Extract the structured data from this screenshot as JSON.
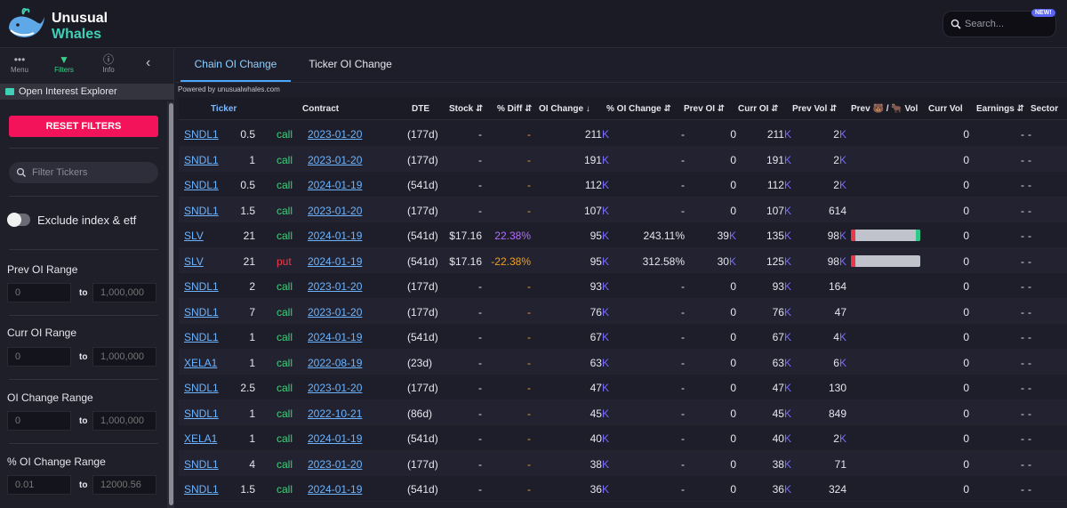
{
  "brand": {
    "line1": "Unusual",
    "line2": "Whales"
  },
  "search": {
    "placeholder": "Search...",
    "badge": "NEW!"
  },
  "sidebar": {
    "tabs": [
      {
        "label": "Menu",
        "icon": "dots-icon"
      },
      {
        "label": "Filters",
        "icon": "filter-icon"
      },
      {
        "label": "Info",
        "icon": "info-icon"
      }
    ],
    "section_title": "Open Interest Explorer",
    "reset_label": "RESET FILTERS",
    "filter_placeholder": "Filter Tickers",
    "exclude_label": "Exclude index & etf",
    "to_label": "to",
    "ranges": [
      {
        "label": "Prev OI Range",
        "min": "0",
        "max": "1,000,000"
      },
      {
        "label": "Curr OI Range",
        "min": "0",
        "max": "1,000,000"
      },
      {
        "label": "OI Change Range",
        "min": "0",
        "max": "1,000,000"
      },
      {
        "label": "% OI Change Range",
        "min": "0.01",
        "max": "12000.56"
      }
    ]
  },
  "main": {
    "tabs": [
      "Chain OI Change",
      "Ticker OI Change"
    ],
    "powered_by": "Powered by unusualwhales.com",
    "columns": {
      "ticker": "Ticker",
      "contract": "Contract",
      "dte": "DTE",
      "stock": "Stock ⇵",
      "pdiff": "% Diff ⇵",
      "oichange": "OI Change ↓",
      "poichange": "% OI Change ⇵",
      "prevoi": "Prev OI ⇵",
      "curroi": "Curr OI ⇵",
      "prevvol": "Prev Vol ⇵",
      "prevbearbull": "Prev 🐻 / 🐂 Vol",
      "currvol": "Curr Vol",
      "earnings": "Earnings ⇵",
      "sector": "Sector"
    },
    "rows": [
      {
        "ticker": "SNDL1",
        "strike": "0.5",
        "type": "call",
        "exp": "2023-01-20",
        "dte": "(177d)",
        "stock": "-",
        "pdiff": "-",
        "pdiff_sign": "dash",
        "oi_change": "211",
        "oi_change_k": "K",
        "poi_change": "-",
        "prev_oi": "0",
        "prev_oi_k": "",
        "curr_oi": "211",
        "curr_oi_k": "K",
        "prev_vol": "2",
        "prev_vol_k": "K",
        "bar": false,
        "curr_vol": "0",
        "earnings": "-",
        "sector": "-"
      },
      {
        "ticker": "SNDL1",
        "strike": "1",
        "type": "call",
        "exp": "2023-01-20",
        "dte": "(177d)",
        "stock": "-",
        "pdiff": "-",
        "pdiff_sign": "dash",
        "oi_change": "191",
        "oi_change_k": "K",
        "poi_change": "-",
        "prev_oi": "0",
        "prev_oi_k": "",
        "curr_oi": "191",
        "curr_oi_k": "K",
        "prev_vol": "2",
        "prev_vol_k": "K",
        "bar": false,
        "curr_vol": "0",
        "earnings": "-",
        "sector": "-"
      },
      {
        "ticker": "SNDL1",
        "strike": "0.5",
        "type": "call",
        "exp": "2024-01-19",
        "dte": "(541d)",
        "stock": "-",
        "pdiff": "-",
        "pdiff_sign": "dash",
        "oi_change": "112",
        "oi_change_k": "K",
        "poi_change": "-",
        "prev_oi": "0",
        "prev_oi_k": "",
        "curr_oi": "112",
        "curr_oi_k": "K",
        "prev_vol": "2",
        "prev_vol_k": "K",
        "bar": false,
        "curr_vol": "0",
        "earnings": "-",
        "sector": "-"
      },
      {
        "ticker": "SNDL1",
        "strike": "1.5",
        "type": "call",
        "exp": "2023-01-20",
        "dte": "(177d)",
        "stock": "-",
        "pdiff": "-",
        "pdiff_sign": "dash",
        "oi_change": "107",
        "oi_change_k": "K",
        "poi_change": "-",
        "prev_oi": "0",
        "prev_oi_k": "",
        "curr_oi": "107",
        "curr_oi_k": "K",
        "prev_vol": "614",
        "prev_vol_k": "",
        "bar": false,
        "curr_vol": "0",
        "earnings": "-",
        "sector": "-"
      },
      {
        "ticker": "SLV",
        "strike": "21",
        "type": "call",
        "exp": "2024-01-19",
        "dte": "(541d)",
        "stock": "$17.16",
        "pdiff": "22.38%",
        "pdiff_sign": "pos",
        "oi_change": "95",
        "oi_change_k": "K",
        "poi_change": "243.11%",
        "prev_oi": "39",
        "prev_oi_k": "K",
        "curr_oi": "135",
        "curr_oi_k": "K",
        "prev_vol": "98",
        "prev_vol_k": "K",
        "bar": true,
        "bar_green": true,
        "curr_vol": "0",
        "earnings": "-",
        "sector": "-"
      },
      {
        "ticker": "SLV",
        "strike": "21",
        "type": "put",
        "exp": "2024-01-19",
        "dte": "(541d)",
        "stock": "$17.16",
        "pdiff": "-22.38%",
        "pdiff_sign": "neg",
        "oi_change": "95",
        "oi_change_k": "K",
        "poi_change": "312.58%",
        "prev_oi": "30",
        "prev_oi_k": "K",
        "curr_oi": "125",
        "curr_oi_k": "K",
        "prev_vol": "98",
        "prev_vol_k": "K",
        "bar": true,
        "bar_green": false,
        "curr_vol": "0",
        "earnings": "-",
        "sector": "-"
      },
      {
        "ticker": "SNDL1",
        "strike": "2",
        "type": "call",
        "exp": "2023-01-20",
        "dte": "(177d)",
        "stock": "-",
        "pdiff": "-",
        "pdiff_sign": "dash",
        "oi_change": "93",
        "oi_change_k": "K",
        "poi_change": "-",
        "prev_oi": "0",
        "prev_oi_k": "",
        "curr_oi": "93",
        "curr_oi_k": "K",
        "prev_vol": "164",
        "prev_vol_k": "",
        "bar": false,
        "curr_vol": "0",
        "earnings": "-",
        "sector": "-"
      },
      {
        "ticker": "SNDL1",
        "strike": "7",
        "type": "call",
        "exp": "2023-01-20",
        "dte": "(177d)",
        "stock": "-",
        "pdiff": "-",
        "pdiff_sign": "dash",
        "oi_change": "76",
        "oi_change_k": "K",
        "poi_change": "-",
        "prev_oi": "0",
        "prev_oi_k": "",
        "curr_oi": "76",
        "curr_oi_k": "K",
        "prev_vol": "47",
        "prev_vol_k": "",
        "bar": false,
        "curr_vol": "0",
        "earnings": "-",
        "sector": "-"
      },
      {
        "ticker": "SNDL1",
        "strike": "1",
        "type": "call",
        "exp": "2024-01-19",
        "dte": "(541d)",
        "stock": "-",
        "pdiff": "-",
        "pdiff_sign": "dash",
        "oi_change": "67",
        "oi_change_k": "K",
        "poi_change": "-",
        "prev_oi": "0",
        "prev_oi_k": "",
        "curr_oi": "67",
        "curr_oi_k": "K",
        "prev_vol": "4",
        "prev_vol_k": "K",
        "bar": false,
        "curr_vol": "0",
        "earnings": "-",
        "sector": "-"
      },
      {
        "ticker": "XELA1",
        "strike": "1",
        "type": "call",
        "exp": "2022-08-19",
        "dte": "(23d)",
        "stock": "-",
        "pdiff": "-",
        "pdiff_sign": "dash",
        "oi_change": "63",
        "oi_change_k": "K",
        "poi_change": "-",
        "prev_oi": "0",
        "prev_oi_k": "",
        "curr_oi": "63",
        "curr_oi_k": "K",
        "prev_vol": "6",
        "prev_vol_k": "K",
        "bar": false,
        "curr_vol": "0",
        "earnings": "-",
        "sector": "-"
      },
      {
        "ticker": "SNDL1",
        "strike": "2.5",
        "type": "call",
        "exp": "2023-01-20",
        "dte": "(177d)",
        "stock": "-",
        "pdiff": "-",
        "pdiff_sign": "dash",
        "oi_change": "47",
        "oi_change_k": "K",
        "poi_change": "-",
        "prev_oi": "0",
        "prev_oi_k": "",
        "curr_oi": "47",
        "curr_oi_k": "K",
        "prev_vol": "130",
        "prev_vol_k": "",
        "bar": false,
        "curr_vol": "0",
        "earnings": "-",
        "sector": "-"
      },
      {
        "ticker": "SNDL1",
        "strike": "1",
        "type": "call",
        "exp": "2022-10-21",
        "dte": "(86d)",
        "stock": "-",
        "pdiff": "-",
        "pdiff_sign": "dash",
        "oi_change": "45",
        "oi_change_k": "K",
        "poi_change": "-",
        "prev_oi": "0",
        "prev_oi_k": "",
        "curr_oi": "45",
        "curr_oi_k": "K",
        "prev_vol": "849",
        "prev_vol_k": "",
        "bar": false,
        "curr_vol": "0",
        "earnings": "-",
        "sector": "-"
      },
      {
        "ticker": "XELA1",
        "strike": "1",
        "type": "call",
        "exp": "2024-01-19",
        "dte": "(541d)",
        "stock": "-",
        "pdiff": "-",
        "pdiff_sign": "dash",
        "oi_change": "40",
        "oi_change_k": "K",
        "poi_change": "-",
        "prev_oi": "0",
        "prev_oi_k": "",
        "curr_oi": "40",
        "curr_oi_k": "K",
        "prev_vol": "2",
        "prev_vol_k": "K",
        "bar": false,
        "curr_vol": "0",
        "earnings": "-",
        "sector": "-"
      },
      {
        "ticker": "SNDL1",
        "strike": "4",
        "type": "call",
        "exp": "2023-01-20",
        "dte": "(177d)",
        "stock": "-",
        "pdiff": "-",
        "pdiff_sign": "dash",
        "oi_change": "38",
        "oi_change_k": "K",
        "poi_change": "-",
        "prev_oi": "0",
        "prev_oi_k": "",
        "curr_oi": "38",
        "curr_oi_k": "K",
        "prev_vol": "71",
        "prev_vol_k": "",
        "bar": false,
        "curr_vol": "0",
        "earnings": "-",
        "sector": "-"
      },
      {
        "ticker": "SNDL1",
        "strike": "1.5",
        "type": "call",
        "exp": "2024-01-19",
        "dte": "(541d)",
        "stock": "-",
        "pdiff": "-",
        "pdiff_sign": "dash",
        "oi_change": "36",
        "oi_change_k": "K",
        "poi_change": "-",
        "prev_oi": "0",
        "prev_oi_k": "",
        "curr_oi": "36",
        "curr_oi_k": "K",
        "prev_vol": "324",
        "prev_vol_k": "",
        "bar": false,
        "curr_vol": "0",
        "earnings": "-",
        "sector": "-"
      }
    ]
  }
}
